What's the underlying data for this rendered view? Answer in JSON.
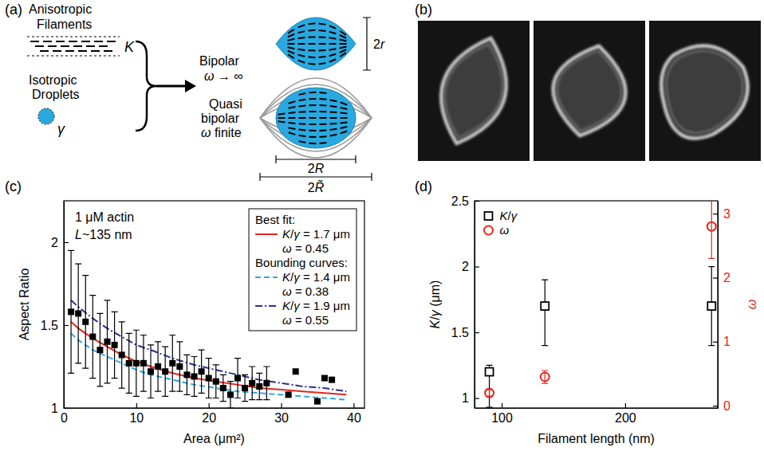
{
  "panel_labels": [
    "(a)",
    "(b)",
    "(c)",
    "(d)"
  ],
  "diagram": {
    "filaments": {
      "lines": [
        "Anisotropic",
        "Filaments"
      ],
      "symbol": "K"
    },
    "droplets": {
      "lines": [
        "Isotropic",
        "Droplets"
      ],
      "symbol": "γ"
    },
    "bipolar": {
      "lines": [
        "Bipolar",
        "ω → ∞"
      ],
      "size_label": "2r"
    },
    "quasi_bipolar": {
      "lines": [
        "Quasi",
        "bipolar",
        "ω finite"
      ],
      "size_labels": [
        "2R",
        "2R̃"
      ]
    }
  },
  "chart_data": [
    {
      "type": "scatter",
      "annotations": [
        "1 μM actin",
        "L~135 nm"
      ],
      "x_label": "Area (μm²)",
      "y_label": "Aspect Ratio",
      "xlim": [
        0,
        41.5
      ],
      "xticks": [
        0,
        10,
        20,
        30,
        40
      ],
      "ylim": [
        1,
        2.25
      ],
      "yticks": [
        1,
        1.5,
        2
      ],
      "legend": "top-right",
      "series": [
        {
          "type": "scatter",
          "marker": "square",
          "color": "#000000",
          "x": [
            1,
            2,
            3,
            4,
            5,
            6,
            7,
            8,
            9,
            10,
            11,
            12,
            13,
            14,
            15,
            16,
            17,
            18,
            19,
            20,
            21,
            22,
            23,
            24,
            25,
            26,
            27,
            28,
            31,
            32,
            35,
            36,
            37
          ],
          "values": [
            1.58,
            1.57,
            1.52,
            1.43,
            1.35,
            1.4,
            1.38,
            1.32,
            1.27,
            1.27,
            1.27,
            1.22,
            1.25,
            1.22,
            1.27,
            1.25,
            1.2,
            1.19,
            1.22,
            1.18,
            1.16,
            1.12,
            1.08,
            1.18,
            1.12,
            1.15,
            1.13,
            1.15,
            1.08,
            1.22,
            1.04,
            1.18,
            1.17
          ],
          "errors": [
            0.37,
            0.3,
            0.28,
            0.25,
            0.22,
            0.25,
            0.2,
            0.2,
            0.18,
            0.2,
            0.17,
            0.16,
            0.15,
            0.15,
            0.17,
            0.15,
            0.12,
            0.12,
            0.13,
            0.12,
            0.1,
            0.08,
            0.08,
            0.12,
            0.08,
            0.1,
            0.08,
            0.1,
            null,
            null,
            null,
            null,
            null
          ]
        },
        {
          "type": "line",
          "name": "K/γ = 1.7 μm",
          "omega_label": "ω = 0.45",
          "legend_header": "Best fit:",
          "color": "#e4261f",
          "line_style": "solid",
          "x": [
            1,
            2,
            4,
            6,
            8,
            10,
            12,
            15,
            18,
            21,
            24,
            27,
            30,
            33,
            36,
            39
          ],
          "values": [
            1.52,
            1.48,
            1.42,
            1.37,
            1.32,
            1.28,
            1.25,
            1.21,
            1.18,
            1.16,
            1.14,
            1.12,
            1.11,
            1.1,
            1.09,
            1.08
          ]
        },
        {
          "type": "line",
          "name": "K/γ = 1.4 μm",
          "omega_label": "ω = 0.38",
          "legend_header": "Bounding curves:",
          "color": "#29a9df",
          "line_style": "dashed",
          "x": [
            1,
            2,
            4,
            6,
            8,
            10,
            12,
            15,
            18,
            21,
            24,
            27,
            30,
            33,
            36,
            39
          ],
          "values": [
            1.45,
            1.41,
            1.35,
            1.31,
            1.27,
            1.23,
            1.2,
            1.17,
            1.14,
            1.12,
            1.1,
            1.09,
            1.08,
            1.07,
            1.06,
            1.05
          ]
        },
        {
          "type": "line",
          "name": "K/γ = 1.9 μm",
          "omega_label": "ω = 0.55",
          "color": "#2e2f8f",
          "line_style": "dash-dot",
          "x": [
            1,
            2,
            4,
            6,
            8,
            10,
            12,
            15,
            18,
            21,
            24,
            27,
            30,
            33,
            36,
            39
          ],
          "values": [
            1.65,
            1.61,
            1.54,
            1.48,
            1.43,
            1.38,
            1.35,
            1.3,
            1.26,
            1.23,
            1.2,
            1.17,
            1.15,
            1.13,
            1.12,
            1.1
          ]
        }
      ]
    },
    {
      "type": "scatter",
      "x_label": "Filament length (nm)",
      "y_label": "K/γ (μm)",
      "y2_label": "ω",
      "xlim": [
        78,
        275
      ],
      "xticks": [
        100,
        200
      ],
      "ylim": [
        0.925,
        2.5
      ],
      "yticks": [
        1,
        1.5,
        2,
        2.5
      ],
      "y2lim": [
        -0.035,
        3.2
      ],
      "y2ticks": [
        0,
        1,
        2,
        3
      ],
      "legend": "top-left",
      "x": [
        90,
        135,
        270
      ],
      "series": [
        {
          "name": "K/γ",
          "marker": "open-square",
          "color": "#000000",
          "values": [
            1.2,
            1.7,
            1.7
          ],
          "errors_low": [
            0.27,
            0.3,
            0.3
          ],
          "errors_high": [
            0.05,
            0.2,
            0.3
          ]
        },
        {
          "name": "ω",
          "axis": "y2",
          "marker": "open-circle",
          "color": "#e4261f",
          "values": [
            0.2,
            0.45,
            2.8
          ],
          "errors_low": [
            0.05,
            0.1,
            0.5
          ],
          "errors_high": [
            0.05,
            0.1,
            0.55
          ]
        }
      ]
    }
  ]
}
